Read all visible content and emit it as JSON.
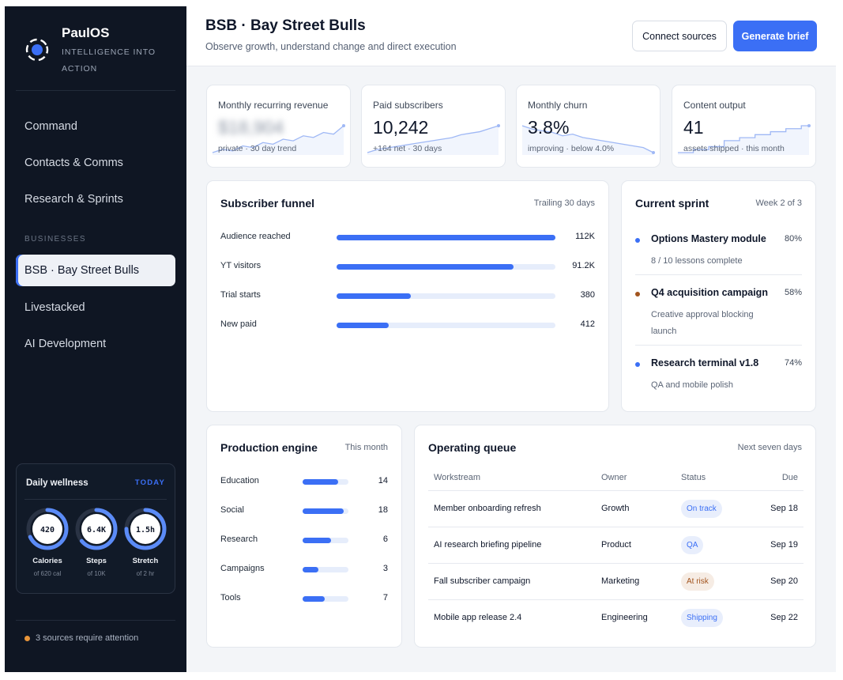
{
  "brand": {
    "name": "PaulOS",
    "tagline": "INTELLIGENCE INTO ACTION"
  },
  "nav": {
    "primary": [
      {
        "label": "Command"
      },
      {
        "label": "Contacts & Comms"
      },
      {
        "label": "Research & Sprints"
      }
    ],
    "section_label": "BUSINESSES",
    "businesses": [
      {
        "label": "BSB · Bay Street Bulls",
        "active": true
      },
      {
        "label": "Livestacked"
      },
      {
        "label": "AI Development"
      }
    ]
  },
  "wellness": {
    "title": "Daily wellness",
    "badge": "TODAY",
    "rings": [
      {
        "value": "420",
        "label": "Calories",
        "sub": "of 620 cal",
        "progress": 0.68
      },
      {
        "value": "6.4K",
        "label": "Steps",
        "sub": "of 10K",
        "progress": 0.64
      },
      {
        "value": "1.5h",
        "label": "Stretch",
        "sub": "of 2 hr",
        "progress": 0.75
      }
    ]
  },
  "alert": {
    "text": "3 sources require attention"
  },
  "header": {
    "title": "BSB · Bay Street Bulls",
    "subtitle": "Observe growth, understand change and direct execution",
    "connect_label": "Connect sources",
    "generate_label": "Generate brief"
  },
  "kpis": [
    {
      "label": "Monthly recurring revenue",
      "value": "$18,904",
      "sub": "private · 30 day trend",
      "blurred": true,
      "trend": [
        2,
        3,
        2.5,
        4,
        3.5,
        5,
        4.5,
        6,
        5.5,
        7,
        6.5,
        8,
        7.5,
        10
      ]
    },
    {
      "label": "Paid subscribers",
      "value": "10,242",
      "sub": "+164 net · 30 days",
      "trend": [
        1,
        2,
        2.5,
        3,
        3.5,
        4,
        4.5,
        5,
        5.5,
        6,
        7,
        7.5,
        8,
        9,
        10
      ]
    },
    {
      "label": "Monthly churn",
      "value": "3.8%",
      "sub": "improving · below 4.0%",
      "trend": [
        10,
        9,
        8.5,
        8,
        7,
        7.5,
        6.5,
        6,
        5.5,
        5,
        4.5,
        4,
        3.5,
        2
      ]
    },
    {
      "label": "Content output",
      "value": "41",
      "sub": "assets shipped · this month",
      "trend": [
        1,
        1,
        2,
        2,
        3,
        3,
        5,
        5,
        6,
        6,
        7,
        7,
        8,
        8,
        9,
        9,
        10,
        10
      ]
    }
  ],
  "funnel": {
    "title": "Subscriber funnel",
    "meta": "Trailing 30 days",
    "rows": [
      {
        "label": "Audience reached",
        "value": "112K",
        "fill": 1.0
      },
      {
        "label": "YT visitors",
        "value": "91.2K",
        "fill": 0.81
      },
      {
        "label": "Trial starts",
        "value": "380",
        "fill": 0.34
      },
      {
        "label": "New paid",
        "value": "412",
        "fill": 0.24
      }
    ]
  },
  "sprint": {
    "title": "Current sprint",
    "meta": "Week 2 of 3",
    "items": [
      {
        "title": "Options Mastery module",
        "pct": "80%",
        "sub": "8 / 10 lessons complete",
        "dot": "#3b6ff5"
      },
      {
        "title": "Q4 acquisition campaign",
        "pct": "58%",
        "sub": "Creative approval blocking launch",
        "dot": "#a2541e"
      },
      {
        "title": "Research terminal v1.8",
        "pct": "74%",
        "sub": "QA and mobile polish",
        "dot": "#3b6ff5"
      }
    ]
  },
  "production": {
    "title": "Production engine",
    "meta": "This month",
    "rows": [
      {
        "label": "Education",
        "value": "14",
        "fill": 0.78
      },
      {
        "label": "Social",
        "value": "18",
        "fill": 0.9
      },
      {
        "label": "Research",
        "value": "6",
        "fill": 0.62
      },
      {
        "label": "Campaigns",
        "value": "3",
        "fill": 0.34
      },
      {
        "label": "Tools",
        "value": "7",
        "fill": 0.48
      }
    ]
  },
  "queue": {
    "title": "Operating queue",
    "meta": "Next seven days",
    "columns": [
      "Workstream",
      "Owner",
      "Status",
      "Due"
    ],
    "rows": [
      {
        "workstream": "Member onboarding refresh",
        "owner": "Growth",
        "status": "On track",
        "due": "Sep 18",
        "risk": false
      },
      {
        "workstream": "AI research briefing pipeline",
        "owner": "Product",
        "status": "QA",
        "due": "Sep 19",
        "risk": false
      },
      {
        "workstream": "Fall subscriber campaign",
        "owner": "Marketing",
        "status": "At risk",
        "due": "Sep 20",
        "risk": true
      },
      {
        "workstream": "Mobile app release 2.4",
        "owner": "Engineering",
        "status": "Shipping",
        "due": "Sep 22",
        "risk": false
      }
    ]
  }
}
